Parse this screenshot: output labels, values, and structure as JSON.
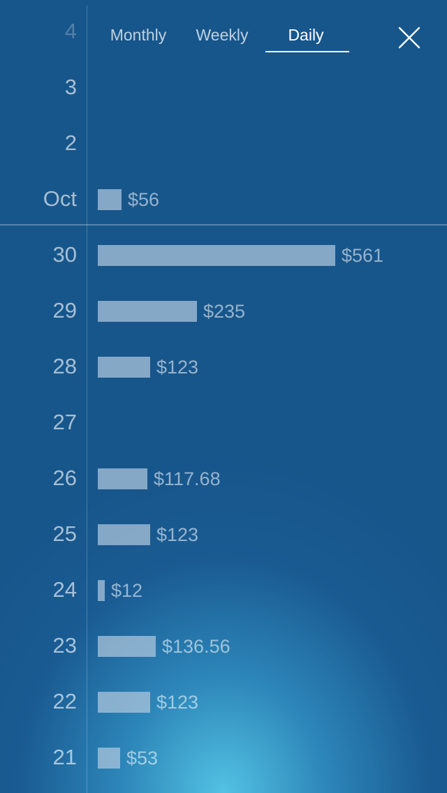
{
  "tabs": [
    {
      "label": "Monthly",
      "active": false
    },
    {
      "label": "Weekly",
      "active": false
    },
    {
      "label": "Daily",
      "active": true
    }
  ],
  "close_icon": "close-icon",
  "colors": {
    "background": "#17568b",
    "glow": "#56c8e8",
    "bar": "#b0c8dc"
  },
  "chart_data": {
    "type": "bar",
    "orientation": "horizontal",
    "categories": [
      "4",
      "3",
      "2",
      "Oct",
      "30",
      "29",
      "28",
      "27",
      "26",
      "25",
      "24",
      "23",
      "22",
      "21"
    ],
    "values": [
      null,
      null,
      null,
      56,
      561,
      235,
      123,
      null,
      117.68,
      123,
      12,
      136.56,
      123,
      53
    ],
    "value_labels": [
      "",
      "",
      "",
      "$56",
      "$561",
      "$235",
      "$123",
      "",
      "$117.68",
      "$123",
      "$12",
      "$136.56",
      "$123",
      "$53"
    ],
    "xlim": [
      0,
      561
    ],
    "grid": false
  }
}
